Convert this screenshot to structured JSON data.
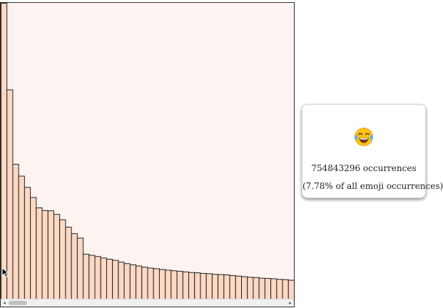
{
  "chart_data": {
    "type": "bar",
    "values": [
      100,
      70.8,
      45.7,
      41.7,
      37.9,
      34.5,
      31.0,
      30.1,
      30.0,
      28.8,
      27.0,
      24.5,
      22.3,
      20.8,
      15.4,
      15.0,
      14.6,
      14.1,
      13.7,
      13.3,
      12.7,
      12.2,
      11.8,
      11.4,
      11.0,
      10.7,
      10.5,
      10.2,
      10.0,
      9.8,
      9.6,
      9.4,
      9.2,
      9.1,
      8.9,
      8.8,
      8.6,
      8.5,
      8.4,
      8.2,
      8.0,
      7.8,
      7.6,
      7.5,
      7.3,
      7.2,
      7.1,
      6.9,
      6.8,
      6.6
    ],
    "ylim": [
      0,
      100
    ],
    "bar_fill": "#fdd8c3",
    "bar_stroke": "#222222",
    "plot_background": "#fdf3f0"
  },
  "tooltip": {
    "emoji_icon": "face-with-tears-of-joy-icon",
    "count_text": "754843296 occurrences",
    "percent_text": "(7.78% of all emoji occurrences)"
  },
  "scrollbar": {
    "left_arrow": "◂",
    "right_arrow": "▸"
  }
}
